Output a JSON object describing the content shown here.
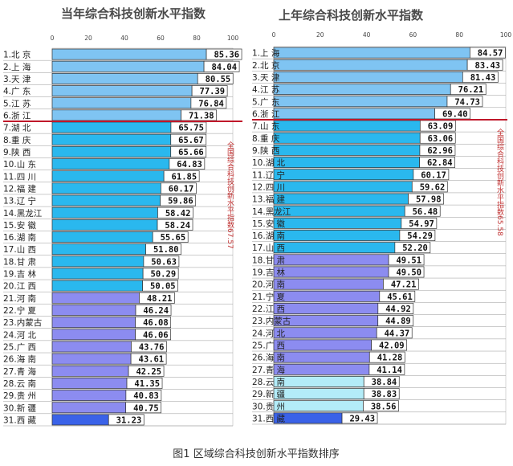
{
  "caption": "图1  区域综合科技创新水平指数排序",
  "chart_data": [
    {
      "type": "bar",
      "orientation": "horizontal",
      "title": "当年综合科技创新水平指数",
      "xlim": [
        0,
        100
      ],
      "xticks": [
        0,
        20,
        40,
        60,
        80,
        100
      ],
      "categories": [
        "1.北    京",
        "2.上    海",
        "3.天    津",
        "4.广    东",
        "5.江    苏",
        "6.浙    江",
        "7.湖    北",
        "8.重    庆",
        "9.陕    西",
        "10.山  东",
        "11.四  川",
        "12.福  建",
        "13.辽  宁",
        "14.黑龙江",
        "15.安  徽",
        "16.湖  南",
        "17.山  西",
        "18.甘  肃",
        "19.吉  林",
        "20.江  西",
        "21.河  南",
        "22.宁  夏",
        "23.内蒙古",
        "24.河  北",
        "25.广  西",
        "26.海  南",
        "27.青  海",
        "28.云  南",
        "29.贵  州",
        "30.新  疆",
        "31.西  藏"
      ],
      "values": [
        85.36,
        84.04,
        80.55,
        77.39,
        76.84,
        71.38,
        65.75,
        65.67,
        65.66,
        64.83,
        61.85,
        60.17,
        59.86,
        58.42,
        58.24,
        55.65,
        51.8,
        50.63,
        50.29,
        50.05,
        48.21,
        46.24,
        46.08,
        46.06,
        43.76,
        43.61,
        42.25,
        41.35,
        40.83,
        40.75,
        31.23
      ],
      "labels": [
        "85.36",
        "84.04",
        "80.55",
        "77.39",
        "76.84",
        "71.38",
        "65.75",
        "65.67",
        "65.66",
        "64.83",
        "61.85",
        "60.17",
        "59.86",
        "58.42",
        "58.24",
        "55.65",
        "51.80",
        "50.63",
        "50.29",
        "50.05",
        "48.21",
        "46.24",
        "46.08",
        "46.06",
        "43.76",
        "43.61",
        "42.25",
        "41.35",
        "40.83",
        "40.75",
        "31.23"
      ],
      "groups": [
        "light",
        "light",
        "light",
        "light",
        "light",
        "light",
        "cyan",
        "cyan",
        "cyan",
        "cyan",
        "cyan",
        "cyan",
        "cyan",
        "cyan",
        "cyan",
        "cyan",
        "cyan",
        "cyan",
        "cyan",
        "cyan",
        "purple",
        "purple",
        "purple",
        "purple",
        "purple",
        "purple",
        "purple",
        "purple",
        "purple",
        "purple",
        "dark"
      ],
      "reference_line_after_rank": 6,
      "annotation": "全国综合科技创新水平指数67.57"
    },
    {
      "type": "bar",
      "orientation": "horizontal",
      "title": "上年综合科技创新水平指数",
      "xlim": [
        0,
        100
      ],
      "xticks": [
        0,
        20,
        40,
        60,
        80,
        100
      ],
      "categories": [
        "1.上    海",
        "2.北    京",
        "3.天    津",
        "4.江    苏",
        "5.广    东",
        "6.浙    江",
        "7.山  东",
        "8.重  庆",
        "9.陕  西",
        "10.湖  北",
        "11.辽  宁",
        "12.四  川",
        "13.福  建",
        "14.黑龙江",
        "15.安  徽",
        "16.湖  南",
        "17.山  西",
        "18.甘  肃",
        "19.吉  林",
        "20.河  南",
        "21.宁  夏",
        "22.江  西",
        "23.内蒙古",
        "24.河  北",
        "25.广  西",
        "26.海  南",
        "27.青  海",
        "28.云  南",
        "29.新  疆",
        "30.贵  州",
        "31.西  藏"
      ],
      "values": [
        84.57,
        83.43,
        81.43,
        76.21,
        74.73,
        69.4,
        63.09,
        63.06,
        62.96,
        62.84,
        60.17,
        59.62,
        57.98,
        56.48,
        54.97,
        54.29,
        52.2,
        49.51,
        49.5,
        47.21,
        45.61,
        44.92,
        44.89,
        44.37,
        42.09,
        41.28,
        41.14,
        38.84,
        38.83,
        38.56,
        29.43
      ],
      "labels": [
        "84.57",
        "83.43",
        "81.43",
        "76.21",
        "74.73",
        "69.40",
        "63.09",
        "63.06",
        "62.96",
        "62.84",
        "60.17",
        "59.62",
        "57.98",
        "56.48",
        "54.97",
        "54.29",
        "52.20",
        "49.51",
        "49.50",
        "47.21",
        "45.61",
        "44.92",
        "44.89",
        "44.37",
        "42.09",
        "41.28",
        "41.14",
        "38.84",
        "38.83",
        "38.56",
        "29.43"
      ],
      "groups": [
        "light",
        "light",
        "light",
        "light",
        "light",
        "light",
        "cyan",
        "cyan",
        "cyan",
        "cyan",
        "cyan",
        "cyan",
        "cyan",
        "cyan",
        "cyan",
        "cyan",
        "cyan",
        "purple",
        "purple",
        "purple",
        "purple",
        "purple",
        "purple",
        "purple",
        "purple",
        "purple",
        "purple",
        "pale",
        "pale",
        "pale",
        "dark"
      ],
      "reference_line_after_rank": 6,
      "annotation": "全国综合科技创新水平指数65.58"
    }
  ],
  "colors": {
    "light": "#7fc4f2",
    "cyan": "#2ab8ee",
    "purple": "#8c8cf0",
    "pale": "#b3ecf8",
    "dark": "#3a62e8",
    "refline": "#c0182a",
    "border": "#333333"
  }
}
